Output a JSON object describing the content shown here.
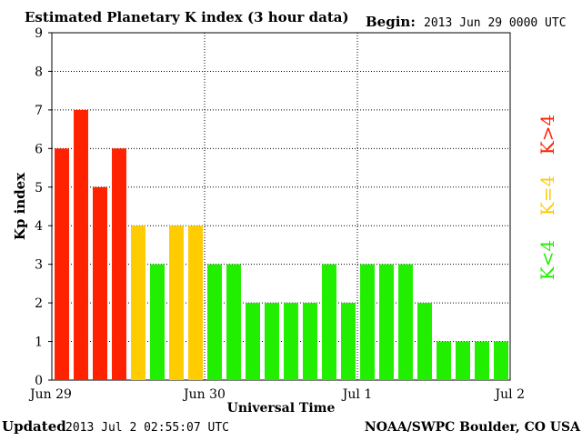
{
  "header": {
    "title": "Estimated Planetary K index (3 hour data)",
    "begin_label": "Begin:",
    "begin_value": "2013 Jun 29 0000 UTC"
  },
  "footer": {
    "updated_label": "Updated",
    "updated_value": "2013 Jul  2 02:55:07 UTC",
    "credit": "NOAA/SWPC Boulder, CO USA"
  },
  "legend": {
    "high": "K>4",
    "equal": "K=4",
    "low": "K<4"
  },
  "colors": {
    "high": "#ff2200",
    "equal": "#ffcc00",
    "low": "#22ee00"
  },
  "chart_data": {
    "type": "bar",
    "title": "Estimated Planetary K index (3 hour data)",
    "xlabel": "Universal Time",
    "ylabel": "Kp index",
    "ylim": [
      0,
      9
    ],
    "yticks": [
      "0",
      "1",
      "2",
      "3",
      "4",
      "5",
      "6",
      "7",
      "8",
      "9"
    ],
    "xtick_labels": [
      "Jun 29",
      "Jun 30",
      "Jul 1",
      "Jul 2"
    ],
    "grid": true,
    "bars_per_day": 8,
    "values": [
      6,
      7,
      5,
      6,
      4,
      3,
      4,
      4,
      3,
      3,
      2,
      2,
      2,
      2,
      3,
      2,
      3,
      3,
      3,
      2,
      1,
      1,
      1,
      1
    ]
  }
}
